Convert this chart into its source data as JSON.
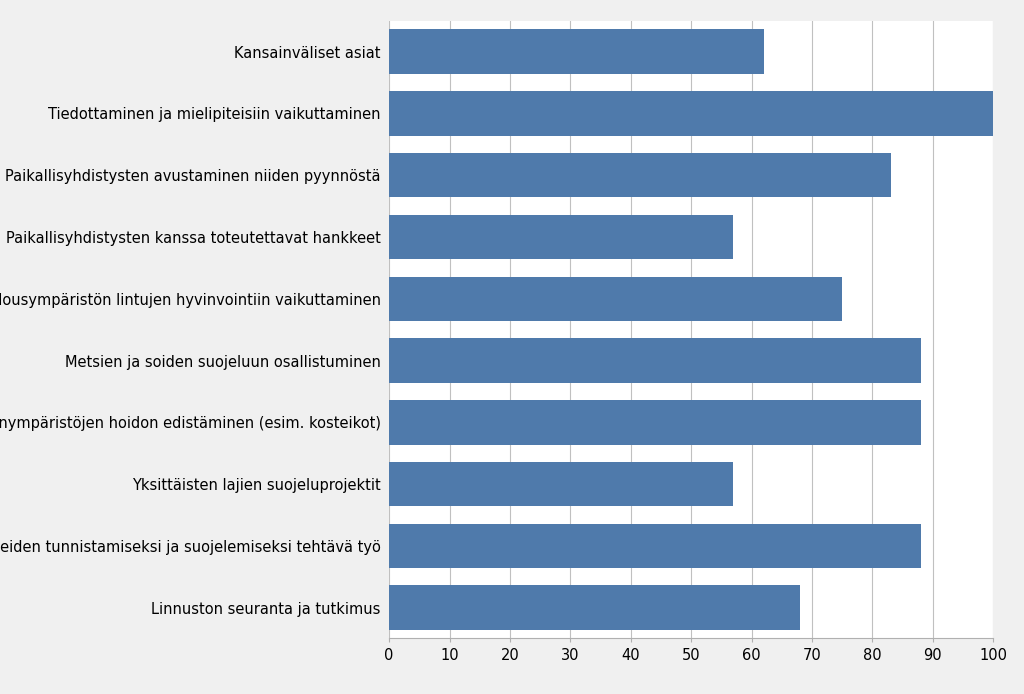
{
  "categories": [
    "Linnuston seuranta ja tutkimus",
    "Lintualueiden tunnistamiseksi ja suojelemiseksi tehtävä työ",
    "Yksittäisten lajien suojeluprojektit",
    "Elinympäristöjen hoidon edistäminen (esim. kosteikot)",
    "Metsien ja soiden suojeluun osallistuminen",
    "Maatalousympäristön lintujen hyvinvointiin vaikuttaminen",
    "Paikallisyhdistysten kanssa toteutettavat hankkeet",
    "Paikallisyhdistysten avustaminen niiden pyynnöstä",
    "Tiedottaminen ja mielipiteisiin vaikuttaminen",
    "Kansainväliset asiat"
  ],
  "values": [
    68,
    88,
    57,
    88,
    88,
    75,
    57,
    83,
    100,
    62
  ],
  "bar_color": "#4F7AAB",
  "xlim": [
    0,
    100
  ],
  "xticks": [
    0,
    10,
    20,
    30,
    40,
    50,
    60,
    70,
    80,
    90,
    100
  ],
  "background_color": "#F0F0F0",
  "plot_background_color": "#FFFFFF",
  "bar_height": 0.72,
  "fontsize_labels": 10.5,
  "fontsize_ticks": 10.5,
  "grid_color": "#C0C0C0",
  "grid_linewidth": 0.8
}
